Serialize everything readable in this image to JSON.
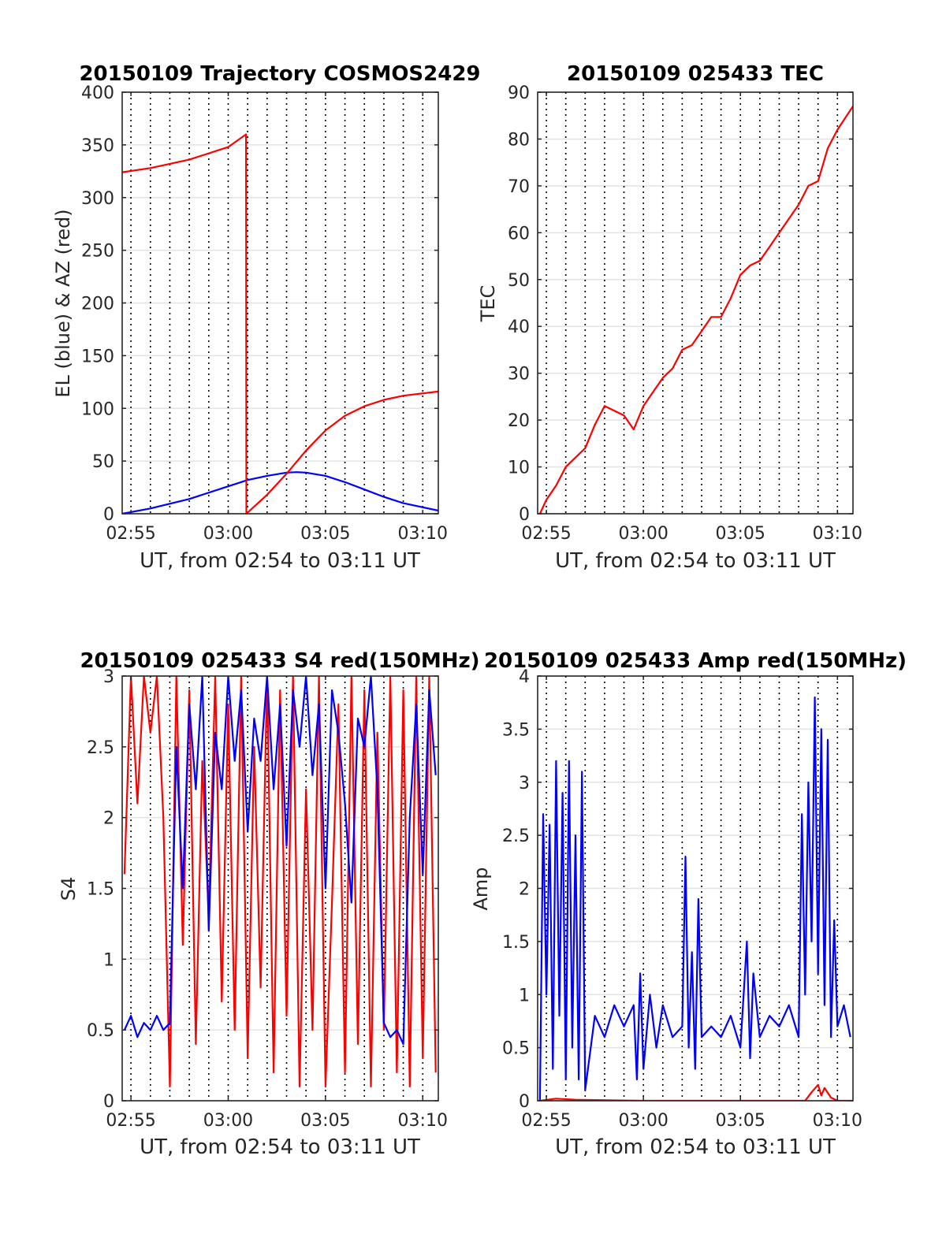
{
  "chart_data": [
    {
      "id": "trajectory",
      "type": "line",
      "title": "20150109 Trajectory COSMOS2429",
      "xlabel": "UT, from 02:54 to 03:11 UT",
      "ylabel": "EL (blue) & AZ (red)",
      "xlim": [
        "02:54:33",
        "03:10:48"
      ],
      "ylim": [
        0,
        400
      ],
      "x_ticks": [
        "02:55",
        "03:00",
        "03:05",
        "03:10"
      ],
      "y_ticks": [
        "0",
        "50",
        "100",
        "150",
        "200",
        "250",
        "300",
        "350",
        "400"
      ],
      "grid": true,
      "series": [
        {
          "color": "#0000ff",
          "x": [
            "02:54:33",
            "02:56:00",
            "02:58:00",
            "03:00:00",
            "03:01:00",
            "03:02:00",
            "03:03:00",
            "03:03:30",
            "03:04:00",
            "03:05:00",
            "03:06:00",
            "03:07:00",
            "03:08:00",
            "03:09:00",
            "03:10:48"
          ],
          "y": [
            0,
            5,
            14,
            26,
            32,
            36,
            39,
            39.5,
            39,
            36,
            30,
            23,
            16,
            10,
            3
          ]
        },
        {
          "color": "#ff0000",
          "x": [
            "02:54:33",
            "02:56:00",
            "02:58:00",
            "03:00:00",
            "03:00:55",
            "03:00:56",
            "03:02:00",
            "03:03:00",
            "03:04:00",
            "03:05:00",
            "03:06:00",
            "03:07:00",
            "03:08:00",
            "03:09:00",
            "03:10:48"
          ],
          "y": [
            324,
            328,
            336,
            348,
            360,
            0,
            18,
            38,
            60,
            79,
            93,
            102,
            108,
            112,
            116
          ]
        }
      ]
    },
    {
      "id": "tec",
      "type": "line",
      "title": "20150109 025433 TEC",
      "xlabel": "UT, from 02:54 to 03:11 UT",
      "ylabel": "TEC",
      "xlim": [
        "02:54:33",
        "03:10:48"
      ],
      "ylim": [
        0,
        90
      ],
      "x_ticks": [
        "02:55",
        "03:00",
        "03:05",
        "03:10"
      ],
      "y_ticks": [
        "0",
        "10",
        "20",
        "30",
        "40",
        "50",
        "60",
        "70",
        "80",
        "90"
      ],
      "grid": true,
      "series": [
        {
          "color": "#ff0000",
          "x": [
            "02:54:40",
            "02:55:00",
            "02:55:30",
            "02:56:00",
            "02:56:30",
            "02:57:00",
            "02:57:30",
            "02:58:00",
            "02:58:30",
            "02:59:00",
            "02:59:30",
            "03:00:00",
            "03:00:30",
            "03:01:00",
            "03:01:30",
            "03:02:00",
            "03:02:30",
            "03:03:00",
            "03:03:30",
            "03:04:00",
            "03:04:30",
            "03:05:00",
            "03:05:30",
            "03:06:00",
            "03:06:30",
            "03:07:00",
            "03:07:30",
            "03:08:00",
            "03:08:30",
            "03:09:00",
            "03:09:30",
            "03:10:00",
            "03:10:48"
          ],
          "y": [
            0,
            3,
            6,
            10,
            12,
            14,
            19,
            23,
            22,
            21,
            18,
            23,
            26,
            29,
            31,
            35,
            36,
            39,
            42,
            42,
            46,
            51,
            53,
            54,
            57,
            60,
            63,
            66,
            70,
            71,
            78,
            82,
            87
          ]
        }
      ]
    },
    {
      "id": "s4",
      "type": "line",
      "title": "20150109 025433 S4 red(150MHz)",
      "xlabel": "UT, from 02:54 to 03:11 UT",
      "ylabel": "S4",
      "xlim": [
        "02:54:33",
        "03:10:48"
      ],
      "ylim": [
        0,
        3
      ],
      "x_ticks": [
        "02:55",
        "03:00",
        "03:05",
        "03:10"
      ],
      "y_ticks": [
        "0",
        "0.5",
        "1",
        "1.5",
        "2",
        "2.5",
        "3"
      ],
      "grid": true,
      "series": [
        {
          "color": "#ff0000",
          "x": [
            "02:54:40",
            "02:55:00",
            "02:55:20",
            "02:55:40",
            "02:56:00",
            "02:56:20",
            "02:56:40",
            "02:57:00",
            "02:57:20",
            "02:57:40",
            "02:58:00",
            "02:58:20",
            "02:58:40",
            "02:59:00",
            "02:59:20",
            "02:59:40",
            "03:00:00",
            "03:00:20",
            "03:00:40",
            "03:01:00",
            "03:01:20",
            "03:01:40",
            "03:02:00",
            "03:02:20",
            "03:02:40",
            "03:03:00",
            "03:03:20",
            "03:03:40",
            "03:04:00",
            "03:04:20",
            "03:04:40",
            "03:05:00",
            "03:05:20",
            "03:05:40",
            "03:06:00",
            "03:06:20",
            "03:06:40",
            "03:07:00",
            "03:07:20",
            "03:07:40",
            "03:08:00",
            "03:08:20",
            "03:08:40",
            "03:09:00",
            "03:09:20",
            "03:09:40",
            "03:10:00",
            "03:10:20",
            "03:10:40"
          ],
          "y": [
            1.6,
            3.0,
            2.1,
            3.0,
            2.6,
            3.0,
            2.0,
            0.1,
            3.0,
            1.1,
            2.9,
            0.4,
            2.4,
            1.3,
            3.0,
            0.7,
            2.8,
            0.5,
            3.0,
            0.3,
            2.5,
            0.8,
            3.0,
            0.2,
            2.9,
            0.6,
            3.0,
            0.1,
            2.2,
            0.5,
            3.0,
            0.1,
            1.4,
            2.8,
            0.2,
            3.0,
            0.4,
            2.9,
            0.1,
            2.6,
            0.5,
            3.0,
            0.2,
            2.9,
            0.1,
            3.0,
            0.3,
            3.0,
            0.2
          ]
        },
        {
          "color": "#0000ff",
          "x": [
            "02:54:40",
            "02:55:00",
            "02:55:20",
            "02:55:40",
            "02:56:00",
            "02:56:20",
            "02:56:40",
            "02:57:00",
            "02:57:20",
            "02:57:40",
            "02:58:00",
            "02:58:20",
            "02:58:40",
            "02:59:00",
            "02:59:20",
            "02:59:40",
            "03:00:00",
            "03:00:20",
            "03:00:40",
            "03:01:00",
            "03:01:20",
            "03:01:40",
            "03:02:00",
            "03:02:20",
            "03:02:40",
            "03:03:00",
            "03:03:20",
            "03:03:40",
            "03:04:00",
            "03:04:20",
            "03:04:40",
            "03:05:00",
            "03:05:20",
            "03:05:40",
            "03:06:00",
            "03:06:20",
            "03:06:40",
            "03:07:00",
            "03:07:20",
            "03:07:40",
            "03:08:00",
            "03:08:20",
            "03:08:40",
            "03:09:00",
            "03:09:20",
            "03:09:40",
            "03:10:00",
            "03:10:20",
            "03:10:40"
          ],
          "y": [
            0.5,
            0.6,
            0.45,
            0.55,
            0.5,
            0.6,
            0.5,
            0.55,
            2.5,
            1.5,
            2.8,
            2.2,
            3.0,
            1.2,
            2.6,
            2.2,
            3.0,
            2.4,
            2.9,
            1.9,
            2.7,
            2.4,
            3.0,
            2.2,
            2.8,
            1.8,
            2.9,
            2.5,
            3.0,
            2.3,
            2.8,
            1.5,
            2.9,
            2.6,
            2.1,
            1.4,
            2.7,
            2.5,
            3.0,
            2.2,
            0.55,
            0.45,
            0.5,
            0.4,
            2.0,
            2.8,
            1.6,
            2.9,
            2.3
          ]
        }
      ]
    },
    {
      "id": "amp",
      "type": "line",
      "title": "20150109 025433 Amp red(150MHz)",
      "xlabel": "UT, from 02:54 to 03:11 UT",
      "ylabel": "Amp",
      "xlim": [
        "02:54:33",
        "03:10:48"
      ],
      "ylim": [
        0,
        4
      ],
      "x_ticks": [
        "02:55",
        "03:00",
        "03:05",
        "03:10"
      ],
      "y_ticks": [
        "0",
        "0.5",
        "1",
        "1.5",
        "2",
        "2.5",
        "3",
        "3.5",
        "4"
      ],
      "grid": true,
      "series": [
        {
          "color": "#0000ff",
          "x": [
            "02:54:40",
            "02:54:50",
            "02:55:00",
            "02:55:10",
            "02:55:20",
            "02:55:30",
            "02:55:40",
            "02:55:50",
            "02:56:00",
            "02:56:10",
            "02:56:20",
            "02:56:30",
            "02:56:40",
            "02:56:50",
            "02:57:00",
            "02:57:30",
            "02:58:00",
            "02:58:30",
            "02:59:00",
            "02:59:30",
            "02:59:40",
            "02:59:50",
            "03:00:00",
            "03:00:20",
            "03:00:40",
            "03:01:00",
            "03:01:30",
            "03:02:00",
            "03:02:10",
            "03:02:20",
            "03:02:30",
            "03:02:40",
            "03:02:50",
            "03:03:00",
            "03:03:30",
            "03:04:00",
            "03:04:30",
            "03:05:00",
            "03:05:20",
            "03:05:30",
            "03:05:40",
            "03:06:00",
            "03:06:30",
            "03:07:00",
            "03:07:30",
            "03:08:00",
            "03:08:10",
            "03:08:20",
            "03:08:30",
            "03:08:40",
            "03:08:50",
            "03:09:00",
            "03:09:10",
            "03:09:20",
            "03:09:30",
            "03:09:40",
            "03:09:50",
            "03:10:00",
            "03:10:20",
            "03:10:40"
          ],
          "y": [
            0.0,
            2.7,
            1.0,
            2.6,
            0.3,
            3.2,
            0.8,
            2.9,
            0.2,
            3.2,
            0.5,
            2.5,
            0.2,
            3.1,
            0.1,
            0.8,
            0.6,
            0.9,
            0.7,
            0.9,
            0.2,
            1.2,
            0.3,
            1.0,
            0.5,
            0.9,
            0.6,
            0.7,
            2.3,
            0.5,
            1.4,
            0.3,
            1.9,
            0.6,
            0.7,
            0.6,
            0.8,
            0.5,
            1.5,
            0.4,
            1.2,
            0.6,
            0.8,
            0.7,
            0.9,
            0.6,
            2.7,
            1.0,
            3.0,
            1.5,
            3.8,
            1.2,
            3.5,
            0.9,
            3.4,
            0.6,
            1.7,
            0.7,
            0.9,
            0.6
          ]
        },
        {
          "color": "#ff0000",
          "x": [
            "02:54:40",
            "02:55:30",
            "02:56:30",
            "03:00:00",
            "03:05:00",
            "03:08:20",
            "03:08:40",
            "03:09:00",
            "03:09:10",
            "03:09:20",
            "03:09:40",
            "03:10:00",
            "03:10:48"
          ],
          "y": [
            0.0,
            0.02,
            0.01,
            0.0,
            0.0,
            0.0,
            0.08,
            0.15,
            0.05,
            0.12,
            0.03,
            0.0,
            0.0
          ]
        }
      ]
    }
  ]
}
